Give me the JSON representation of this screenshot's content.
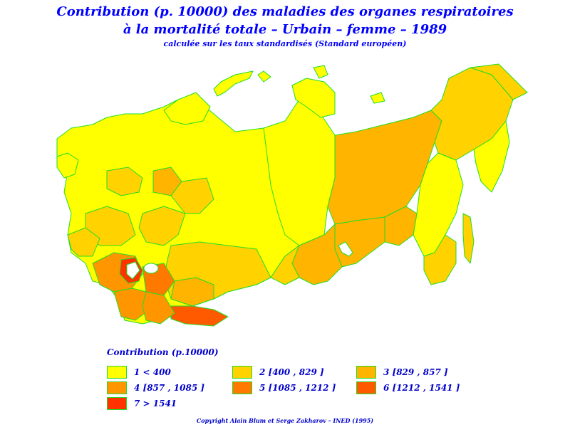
{
  "title": {
    "line1": "Contribution (p. 10000) des maladies des organes respiratoires",
    "line2": "à la mortalité totale  –  Urbain  –  femme  –  1989",
    "subtitle": "calculée sur les taux standardisés (Standard européen)"
  },
  "colors": {
    "border": "#22dd22",
    "c1": "#ffff00",
    "c2": "#ffd200",
    "c3": "#ffb400",
    "c4": "#ff9600",
    "c5": "#ff7800",
    "c6": "#ff5a00",
    "c7": "#ff3200"
  },
  "legend": {
    "title": "Contribution  (p.10000)",
    "classes": [
      {
        "label": "1  <  400",
        "color": "#ffff00"
      },
      {
        "label": "2  [400 ,  829  ]",
        "color": "#ffd200"
      },
      {
        "label": "3  [829 ,  857  ]",
        "color": "#ffb400"
      },
      {
        "label": "4  [857 ,  1085  ]",
        "color": "#ff9600"
      },
      {
        "label": "5  [1085 ,  1212  ]",
        "color": "#ff7800"
      },
      {
        "label": "6  [1212 ,  1541  ]",
        "color": "#ff5a00"
      },
      {
        "label": "7  >  1541",
        "color": "#ff3200"
      }
    ]
  },
  "copyright": "Copyright  Alain  Blum  et  Serge  Zakharov  –  INED  (1995)"
}
